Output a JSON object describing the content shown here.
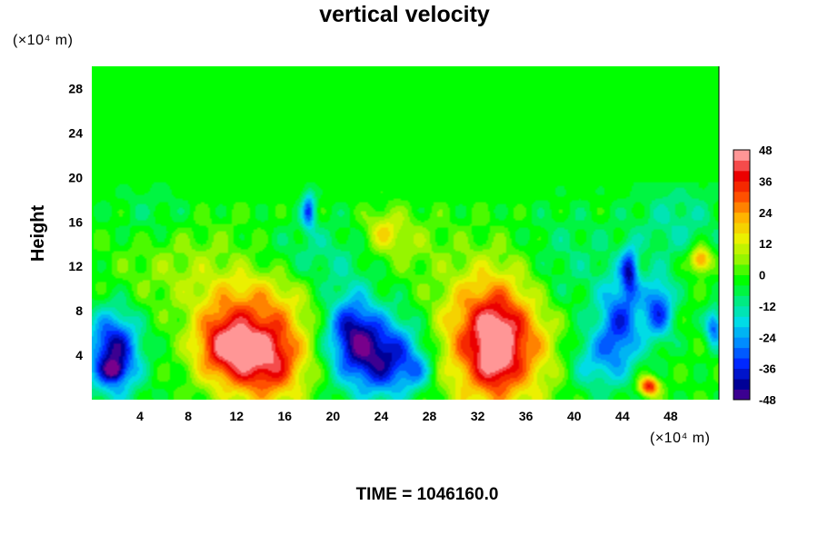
{
  "chart_data": {
    "type": "heatmap",
    "title": "vertical velocity",
    "xlabel": "",
    "ylabel": "Height",
    "x_unit": "(×10⁴ m)",
    "y_unit": "(×10⁴ m)",
    "xlim": [
      0,
      52
    ],
    "ylim": [
      0,
      30
    ],
    "x_ticks": [
      "4",
      "8",
      "12",
      "16",
      "20",
      "24",
      "28",
      "32",
      "36",
      "40",
      "44",
      "48"
    ],
    "y_ticks": [
      "4",
      "8",
      "12",
      "16",
      "20",
      "24",
      "28"
    ],
    "grid": false,
    "colorbar": {
      "placement": "right",
      "range": [
        -48,
        48
      ],
      "step": 4,
      "ticks": [
        "48",
        "36",
        "24",
        "12",
        "0",
        "-12",
        "-24",
        "-36",
        "-48"
      ]
    },
    "features": [
      {
        "x": 1.8,
        "y": 4.2,
        "sx": 1.5,
        "sy": 2.6,
        "amp": -42
      },
      {
        "x": 1.8,
        "y": 2.6,
        "sx": 0.6,
        "sy": 0.6,
        "amp": -20
      },
      {
        "x": 10.8,
        "y": 5.0,
        "sx": 1.8,
        "sy": 2.4,
        "amp": 36
      },
      {
        "x": 14.5,
        "y": 4.0,
        "sx": 2.3,
        "sy": 3.0,
        "amp": 46
      },
      {
        "x": 24.0,
        "y": 3.8,
        "sx": 2.4,
        "sy": 2.5,
        "amp": -40
      },
      {
        "x": 27.0,
        "y": 2.6,
        "sx": 0.9,
        "sy": 1.1,
        "amp": -12
      },
      {
        "x": 21.5,
        "y": 6.5,
        "sx": 1.4,
        "sy": 2.3,
        "amp": -28
      },
      {
        "x": 33.5,
        "y": 5.5,
        "sx": 3.0,
        "sy": 4.2,
        "amp": 48
      },
      {
        "x": 33.5,
        "y": 4.5,
        "sx": 0.9,
        "sy": 2.2,
        "amp": 18
      },
      {
        "x": 43.8,
        "y": 6.8,
        "sx": 1.3,
        "sy": 3.0,
        "amp": -30
      },
      {
        "x": 44.6,
        "y": 11.6,
        "sx": 0.5,
        "sy": 1.5,
        "amp": -30
      },
      {
        "x": 47.0,
        "y": 8.2,
        "sx": 0.9,
        "sy": 2.0,
        "amp": -30
      },
      {
        "x": 46.2,
        "y": 1.2,
        "sx": 0.6,
        "sy": 0.6,
        "amp": 40
      },
      {
        "x": 50.5,
        "y": 12.6,
        "sx": 0.6,
        "sy": 0.8,
        "amp": 32
      },
      {
        "x": 51.6,
        "y": 6.5,
        "sx": 0.5,
        "sy": 1.2,
        "amp": -28
      },
      {
        "x": 18.0,
        "y": 17.0,
        "sx": 0.4,
        "sy": 1.2,
        "amp": -28
      },
      {
        "x": 24.2,
        "y": 15.2,
        "sx": 1.1,
        "sy": 1.3,
        "amp": 14
      },
      {
        "x": 26.0,
        "y": 14.0,
        "sx": 2.2,
        "sy": 2.0,
        "amp": 8
      },
      {
        "x": 19.0,
        "y": 12.5,
        "sx": 3.5,
        "sy": 2.5,
        "amp": -9
      },
      {
        "x": 8.0,
        "y": 12.0,
        "sx": 4.5,
        "sy": 3.0,
        "amp": 8
      },
      {
        "x": 39.0,
        "y": 13.0,
        "sx": 3.0,
        "sy": 3.0,
        "amp": -7
      },
      {
        "x": 48.5,
        "y": 16.0,
        "sx": 2.5,
        "sy": 2.5,
        "amp": -10
      },
      {
        "x": 5.0,
        "y": 16.5,
        "sx": 2.5,
        "sy": 2.0,
        "amp": -6
      },
      {
        "x": 14.0,
        "y": 9.5,
        "sx": 3.5,
        "sy": 1.8,
        "amp": 12
      },
      {
        "x": 37.5,
        "y": 9.0,
        "sx": 2.5,
        "sy": 2.0,
        "amp": -5
      },
      {
        "x": 41.5,
        "y": 3.5,
        "sx": 1.5,
        "sy": 2.0,
        "amp": -16
      }
    ]
  },
  "footer": {
    "time_label": "TIME = 1046160.0"
  }
}
